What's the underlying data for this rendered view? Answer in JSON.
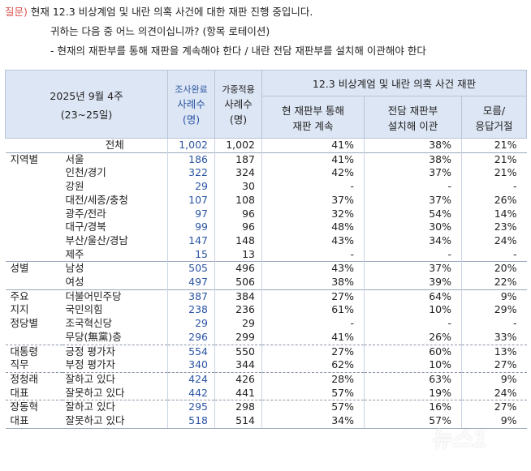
{
  "question": {
    "label": "질문)",
    "line1": " 현재 12.3 비상계엄 및 내란 의혹 사건에 대한 재판 진행 중입니다.",
    "line2": "귀하는 다음 중 어느 의견이십니까? (항목 로테이션)",
    "line3": "- 현재의 재판부를 통해 재판을 계속해야 한다 / 내란 전담 재판부를 설치해 이관해야 한다"
  },
  "table": {
    "period_title": "2025년 9월 4주",
    "period_dates": "(23~25일)",
    "col_samples_l1": "조사완료",
    "col_samples_l2": "사례수",
    "col_samples_l3": "(명)",
    "col_weighted_l1": "가중적용",
    "col_weighted_l2": "사례수",
    "col_weighted_l3": "(명)",
    "group_header": "12.3 비상계엄 및 내란 의혹 사건 재판",
    "opt1_l1": "현 재판부 통해",
    "opt1_l2": "재판 계속",
    "opt2_l1": "전담 재판부",
    "opt2_l2": "설치해 이관",
    "opt3_l1": "모름/",
    "opt3_l2": "응답거절",
    "rows": [
      {
        "g": "",
        "s": "전체",
        "n1": "1,002",
        "n2": "1,002",
        "p1": "41%",
        "p2": "38%",
        "p3": "21%",
        "c": true,
        "cls": "top"
      },
      {
        "g": "지역별",
        "s": "서울",
        "n1": "186",
        "n2": "187",
        "p1": "41%",
        "p2": "38%",
        "p3": "21%",
        "cls": "top"
      },
      {
        "g": "",
        "s": "인천/경기",
        "n1": "322",
        "n2": "324",
        "p1": "42%",
        "p2": "37%",
        "p3": "21%"
      },
      {
        "g": "",
        "s": "강원",
        "n1": "29",
        "n2": "30",
        "p1": "-",
        "p2": "-",
        "p3": "-"
      },
      {
        "g": "",
        "s": "대전/세종/충청",
        "n1": "107",
        "n2": "108",
        "p1": "37%",
        "p2": "37%",
        "p3": "26%"
      },
      {
        "g": "",
        "s": "광주/전라",
        "n1": "97",
        "n2": "96",
        "p1": "32%",
        "p2": "54%",
        "p3": "14%"
      },
      {
        "g": "",
        "s": "대구/경북",
        "n1": "99",
        "n2": "96",
        "p1": "48%",
        "p2": "30%",
        "p3": "23%"
      },
      {
        "g": "",
        "s": "부산/울산/경남",
        "n1": "147",
        "n2": "148",
        "p1": "43%",
        "p2": "34%",
        "p3": "24%"
      },
      {
        "g": "",
        "s": "제주",
        "n1": "15",
        "n2": "13",
        "p1": "-",
        "p2": "-",
        "p3": "-"
      },
      {
        "g": "성별",
        "s": "남성",
        "n1": "505",
        "n2": "496",
        "p1": "43%",
        "p2": "37%",
        "p3": "20%",
        "cls": "top"
      },
      {
        "g": "",
        "s": "여성",
        "n1": "497",
        "n2": "506",
        "p1": "38%",
        "p2": "39%",
        "p3": "22%"
      },
      {
        "g": "주요",
        "s": "더불어민주당",
        "n1": "387",
        "n2": "384",
        "p1": "27%",
        "p2": "64%",
        "p3": "9%",
        "cls": "top"
      },
      {
        "g": "지지",
        "s": "국민의힘",
        "n1": "238",
        "n2": "236",
        "p1": "61%",
        "p2": "10%",
        "p3": "29%"
      },
      {
        "g": "정당별",
        "s": "조국혁신당",
        "n1": "29",
        "n2": "29",
        "p1": "-",
        "p2": "-",
        "p3": "-"
      },
      {
        "g": "",
        "s": "무당(無黨)층",
        "n1": "296",
        "n2": "299",
        "p1": "41%",
        "p2": "26%",
        "p3": "33%"
      },
      {
        "g": "대통령",
        "s": "긍정 평가자",
        "n1": "554",
        "n2": "550",
        "p1": "27%",
        "p2": "60%",
        "p3": "13%",
        "cls": "sep"
      },
      {
        "g": "직무",
        "s": "부정 평가자",
        "n1": "340",
        "n2": "344",
        "p1": "62%",
        "p2": "10%",
        "p3": "27%"
      },
      {
        "g": "정청래",
        "s": "잘하고 있다",
        "n1": "424",
        "n2": "426",
        "p1": "28%",
        "p2": "63%",
        "p3": "9%",
        "cls": "sep"
      },
      {
        "g": "대표",
        "s": "잘못하고 있다",
        "n1": "442",
        "n2": "441",
        "p1": "57%",
        "p2": "19%",
        "p3": "24%"
      },
      {
        "g": "장동혁",
        "s": "잘하고 있다",
        "n1": "295",
        "n2": "298",
        "p1": "57%",
        "p2": "16%",
        "p3": "27%",
        "cls": "sep"
      },
      {
        "g": "대표",
        "s": "잘못하고 있다",
        "n1": "518",
        "n2": "514",
        "p1": "34%",
        "p2": "57%",
        "p3": "9%",
        "cls": "bot"
      }
    ]
  }
}
